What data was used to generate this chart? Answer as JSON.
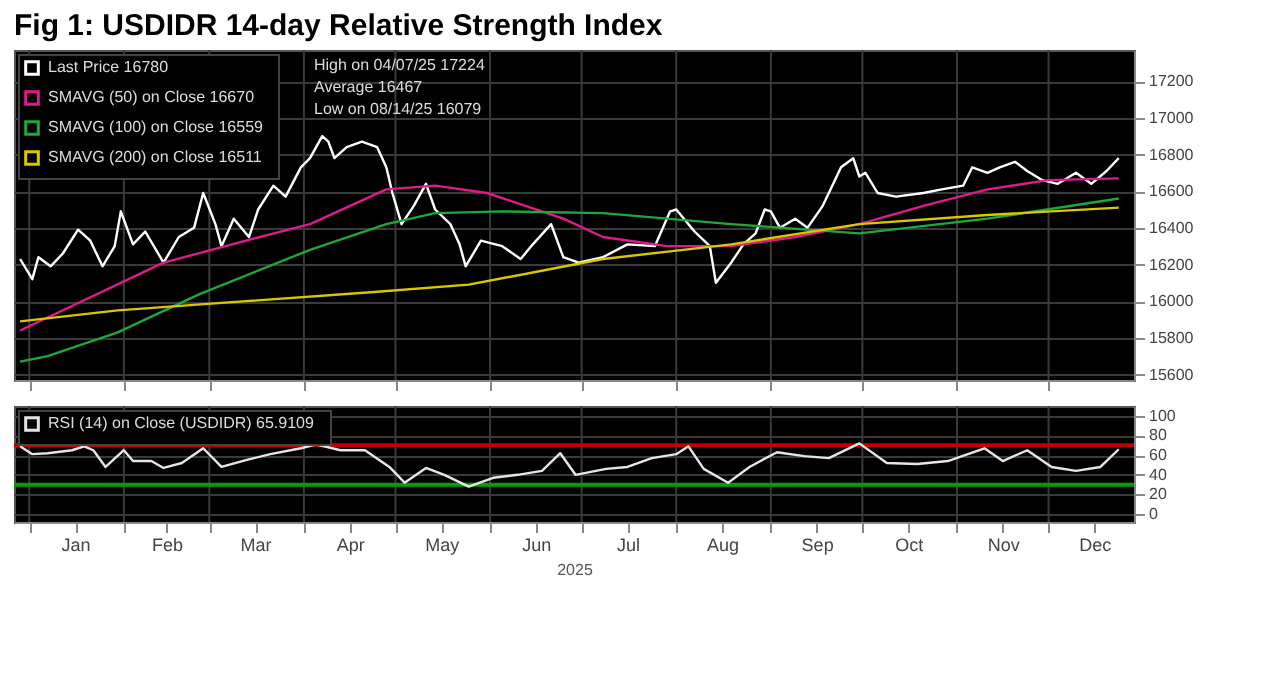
{
  "chart_data": [
    {
      "type": "line",
      "title": "Fig 1:  USDIDR  14-day Relative Strength Index",
      "xlim": [
        "2024-12-27",
        "2025-12-29"
      ],
      "ylim": [
        15570,
        17370
      ],
      "yticks": [
        15600,
        15800,
        16000,
        16200,
        16400,
        16600,
        16800,
        17000,
        17200
      ],
      "xticks": [
        {
          "value": "2025-01-01",
          "label": null
        },
        {
          "value": "2025-02-01",
          "label": null
        },
        {
          "value": "2025-03-01",
          "label": null
        },
        {
          "value": "2025-04-01",
          "label": null
        },
        {
          "value": "2025-05-01",
          "label": null
        },
        {
          "value": "2025-06-01",
          "label": null
        },
        {
          "value": "2025-07-01",
          "label": null
        },
        {
          "value": "2025-08-01",
          "label": null
        },
        {
          "value": "2025-09-01",
          "label": null
        },
        {
          "value": "2025-10-01",
          "label": null
        },
        {
          "value": "2025-11-01",
          "label": null
        },
        {
          "value": "2025-12-01",
          "label": null
        }
      ],
      "tick_labels": "y",
      "grid": true,
      "legend": "top left",
      "line_style": "solid",
      "marker": "none",
      "annotations": [
        "High on 04/07/25  17224",
        "Average  16467",
        "Low on 08/14/25  16079"
      ],
      "series": [
        {
          "name": "Last Price  16780",
          "color": "#ffffff",
          "x": [
            "2024-12-29",
            "2025-01-02",
            "2025-01-04",
            "2025-01-08",
            "2025-01-12",
            "2025-01-17",
            "2025-01-21",
            "2025-01-25",
            "2025-01-29",
            "2025-01-31",
            "2025-02-04",
            "2025-02-08",
            "2025-02-14",
            "2025-02-19",
            "2025-02-24",
            "2025-02-27",
            "2025-03-03",
            "2025-03-05",
            "2025-03-09",
            "2025-03-14",
            "2025-03-17",
            "2025-03-22",
            "2025-03-26",
            "2025-03-31",
            "2025-04-03",
            "2025-04-07",
            "2025-04-09",
            "2025-04-11",
            "2025-04-15",
            "2025-04-20",
            "2025-04-25",
            "2025-04-28",
            "2025-04-30",
            "2025-05-03",
            "2025-05-07",
            "2025-05-11",
            "2025-05-14",
            "2025-05-19",
            "2025-05-22",
            "2025-05-24",
            "2025-05-29",
            "2025-06-05",
            "2025-06-11",
            "2025-06-15",
            "2025-06-21",
            "2025-06-25",
            "2025-06-30",
            "2025-07-08",
            "2025-07-16",
            "2025-07-25",
            "2025-07-30",
            "2025-08-01",
            "2025-08-07",
            "2025-08-12",
            "2025-08-14",
            "2025-08-19",
            "2025-08-23",
            "2025-08-27",
            "2025-08-30",
            "2025-09-01",
            "2025-09-04",
            "2025-09-09",
            "2025-09-13",
            "2025-09-18",
            "2025-09-20",
            "2025-09-24",
            "2025-09-28",
            "2025-09-30",
            "2025-10-02",
            "2025-10-06",
            "2025-10-12",
            "2025-10-21",
            "2025-10-27",
            "2025-11-03",
            "2025-11-06",
            "2025-11-11",
            "2025-11-15",
            "2025-11-20",
            "2025-11-24",
            "2025-11-29",
            "2025-12-04",
            "2025-12-10",
            "2025-12-15",
            "2025-12-20",
            "2025-12-24"
          ],
          "values": [
            16230,
            16120,
            16240,
            16190,
            16260,
            16390,
            16330,
            16190,
            16300,
            16490,
            16310,
            16380,
            16210,
            16350,
            16400,
            16590,
            16420,
            16300,
            16450,
            16350,
            16500,
            16630,
            16570,
            16730,
            16780,
            16900,
            16870,
            16780,
            16840,
            16870,
            16840,
            16730,
            16590,
            16420,
            16520,
            16640,
            16500,
            16420,
            16310,
            16190,
            16330,
            16300,
            16230,
            16310,
            16420,
            16240,
            16210,
            16240,
            16310,
            16300,
            16490,
            16500,
            16380,
            16300,
            16100,
            16210,
            16310,
            16370,
            16500,
            16490,
            16400,
            16450,
            16400,
            16520,
            16590,
            16730,
            16780,
            16680,
            16700,
            16590,
            16570,
            16590,
            16610,
            16630,
            16730,
            16700,
            16730,
            16760,
            16710,
            16660,
            16640,
            16700,
            16640,
            16710,
            16780
          ]
        },
        {
          "name": "SMAVG (50)  on Close  16670",
          "color": "#e0198c",
          "x": [
            "2024-12-29",
            "2025-02-14",
            "2025-03-13",
            "2025-04-03",
            "2025-04-28",
            "2025-05-14",
            "2025-05-31",
            "2025-06-25",
            "2025-07-08",
            "2025-07-29",
            "2025-08-19",
            "2025-09-09",
            "2025-09-30",
            "2025-10-21",
            "2025-11-11",
            "2025-12-01",
            "2025-12-24"
          ],
          "values": [
            15840,
            16210,
            16330,
            16420,
            16610,
            16630,
            16590,
            16450,
            16350,
            16300,
            16300,
            16350,
            16420,
            16520,
            16610,
            16660,
            16670
          ]
        },
        {
          "name": "SMAVG (100)  on Close  16559",
          "color": "#1fa83a",
          "x": [
            "2024-12-29",
            "2025-01-07",
            "2025-01-30",
            "2025-02-26",
            "2025-04-03",
            "2025-04-28",
            "2025-05-14",
            "2025-06-05",
            "2025-07-08",
            "2025-08-19",
            "2025-09-30",
            "2025-11-11",
            "2025-12-24"
          ],
          "values": [
            15670,
            15700,
            15830,
            16040,
            16280,
            16420,
            16480,
            16490,
            16480,
            16420,
            16370,
            16450,
            16560
          ]
        },
        {
          "name": "SMAVG (200)  on Close  16511",
          "color": "#d9c800",
          "x": [
            "2024-12-29",
            "2025-01-30",
            "2025-03-13",
            "2025-04-24",
            "2025-05-25",
            "2025-07-08",
            "2025-08-19",
            "2025-09-30",
            "2025-11-11",
            "2025-12-24"
          ],
          "values": [
            15890,
            15950,
            16000,
            16050,
            16090,
            16230,
            16310,
            16420,
            16470,
            16510
          ]
        }
      ]
    },
    {
      "type": "line",
      "xlabel": "2025",
      "xlim": [
        "2024-12-27",
        "2025-12-29"
      ],
      "ylim": [
        -8,
        110
      ],
      "yticks": [
        0,
        20,
        40,
        60,
        80,
        100
      ],
      "xticks": [
        {
          "value": "2025-01-01",
          "label": null
        },
        {
          "value": "2025-01-16",
          "label": "Jan"
        },
        {
          "value": "2025-02-01",
          "label": null
        },
        {
          "value": "2025-02-15",
          "label": "Feb"
        },
        {
          "value": "2025-03-01",
          "label": null
        },
        {
          "value": "2025-03-16",
          "label": "Mar"
        },
        {
          "value": "2025-04-01",
          "label": null
        },
        {
          "value": "2025-04-16",
          "label": "Apr"
        },
        {
          "value": "2025-05-01",
          "label": null
        },
        {
          "value": "2025-05-16",
          "label": "May"
        },
        {
          "value": "2025-06-01",
          "label": null
        },
        {
          "value": "2025-06-16",
          "label": "Jun"
        },
        {
          "value": "2025-07-01",
          "label": null
        },
        {
          "value": "2025-07-16",
          "label": "Jul"
        },
        {
          "value": "2025-08-01",
          "label": null
        },
        {
          "value": "2025-08-16",
          "label": "Aug"
        },
        {
          "value": "2025-09-01",
          "label": null
        },
        {
          "value": "2025-09-16",
          "label": "Sep"
        },
        {
          "value": "2025-10-01",
          "label": null
        },
        {
          "value": "2025-10-16",
          "label": "Oct"
        },
        {
          "value": "2025-11-01",
          "label": null
        },
        {
          "value": "2025-11-16",
          "label": "Nov"
        },
        {
          "value": "2025-12-01",
          "label": null
        },
        {
          "value": "2025-12-16",
          "label": "Dec"
        }
      ],
      "grid": true,
      "legend": "top left",
      "line_style": "solid",
      "marker": "none",
      "ref_lines": [
        {
          "axis": "y",
          "value": 70,
          "color": "#c00000"
        },
        {
          "axis": "y",
          "value": 30,
          "color": "#00a000"
        }
      ],
      "series": [
        {
          "name": "RSI (14)  on Close (USDIDR)  65.9109",
          "color": "#e6e6e6",
          "x": [
            "2024-12-29",
            "2025-01-02",
            "2025-01-07",
            "2025-01-15",
            "2025-01-19",
            "2025-01-22",
            "2025-01-26",
            "2025-02-01",
            "2025-02-04",
            "2025-02-10",
            "2025-02-14",
            "2025-02-20",
            "2025-02-27",
            "2025-03-05",
            "2025-03-13",
            "2025-03-21",
            "2025-03-31",
            "2025-04-05",
            "2025-04-13",
            "2025-04-21",
            "2025-04-29",
            "2025-05-04",
            "2025-05-11",
            "2025-05-17",
            "2025-05-25",
            "2025-06-02",
            "2025-06-10",
            "2025-06-18",
            "2025-06-24",
            "2025-06-29",
            "2025-07-09",
            "2025-07-16",
            "2025-07-24",
            "2025-08-01",
            "2025-08-05",
            "2025-08-10",
            "2025-08-18",
            "2025-08-25",
            "2025-09-03",
            "2025-09-12",
            "2025-09-20",
            "2025-09-30",
            "2025-10-09",
            "2025-10-19",
            "2025-10-29",
            "2025-11-10",
            "2025-11-16",
            "2025-11-24",
            "2025-12-02",
            "2025-12-10",
            "2025-12-18",
            "2025-12-24"
          ],
          "values": [
            69,
            61,
            62,
            65,
            69,
            65,
            48,
            65,
            54,
            54,
            47,
            52,
            67,
            48,
            55,
            61,
            67,
            71,
            65,
            65,
            48,
            32,
            47,
            40,
            28,
            37,
            40,
            44,
            62,
            40,
            46,
            48,
            57,
            61,
            69,
            46,
            32,
            48,
            63,
            59,
            57,
            72,
            52,
            51,
            54,
            67,
            54,
            65,
            48,
            44,
            48,
            66
          ]
        }
      ]
    }
  ]
}
